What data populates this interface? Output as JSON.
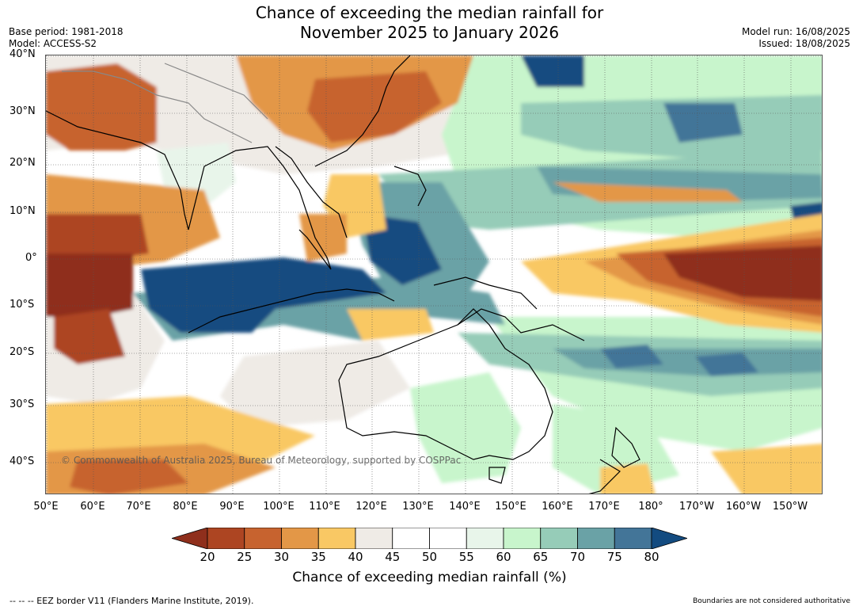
{
  "title": {
    "line1": "Chance of exceeding the median rainfall for",
    "line2": "November 2025 to January 2026"
  },
  "meta_left": {
    "base_period": "Base period: 1981-2018",
    "model": "Model: ACCESS-S2"
  },
  "meta_right": {
    "model_run": "Model run: 16/08/2025",
    "issued": "Issued: 18/08/2025"
  },
  "map": {
    "y_ticks": [
      "40°N",
      "30°N",
      "20°N",
      "10°N",
      "0°",
      "10°S",
      "20°S",
      "30°S",
      "40°S"
    ],
    "x_ticks": [
      "50°E",
      "60°E",
      "70°E",
      "80°E",
      "90°E",
      "100°E",
      "110°E",
      "120°E",
      "130°E",
      "140°E",
      "150°E",
      "160°E",
      "170°E",
      "180°",
      "170°W",
      "160°W",
      "150°W"
    ],
    "copyright": "© Commonwealth of Australia 2025, Bureau of Meteorology, supported by COSPPac"
  },
  "colorbar": {
    "ticks": [
      "20",
      "25",
      "30",
      "35",
      "40",
      "45",
      "50",
      "55",
      "60",
      "65",
      "70",
      "75",
      "80"
    ],
    "colors": [
      "#8f2f1c",
      "#ad4522",
      "#c7632f",
      "#e39747",
      "#f9c864",
      "#efebe6",
      "#ffffff",
      "#ffffff",
      "#e8f5ea",
      "#c8f5cc",
      "#96ccb8",
      "#6aa2a6",
      "#437598",
      "#134b80"
    ],
    "label": "Chance of exceeding median rainfall (%)"
  },
  "footer": {
    "eez_note": "--  --  -- EEZ border V11 (Flanders Marine Institute, 2019).",
    "boundaries_note": "Boundaries are not considered authoritative"
  }
}
